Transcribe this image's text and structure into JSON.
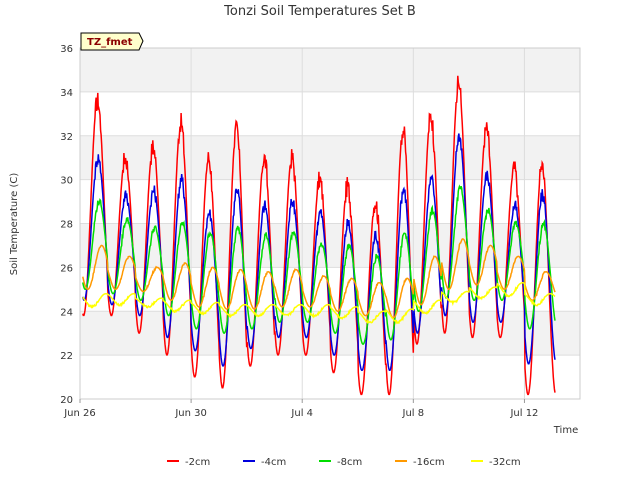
{
  "chart_data": {
    "type": "line",
    "title": "Tonzi Soil Temperatures Set B",
    "xlabel": "Time",
    "ylabel": "Soil Temperature (C)",
    "badge": "TZ_fmet",
    "ylim": [
      20,
      36
    ],
    "xlim": [
      0,
      18
    ],
    "x_unit": "days since Jun 26",
    "yticks": [
      20,
      22,
      24,
      26,
      28,
      30,
      32,
      34,
      36
    ],
    "xticks": [
      {
        "x": 0,
        "label": "Jun 26"
      },
      {
        "x": 4,
        "label": "Jun 30"
      },
      {
        "x": 8,
        "label": "Jul 4"
      },
      {
        "x": 12,
        "label": "Jul 8"
      },
      {
        "x": 16,
        "label": "Jul 12"
      }
    ],
    "grid": true,
    "legend_position": "bottom",
    "series": [
      {
        "name": "-2cm",
        "color": "#ff0000",
        "peaks": [
          33.6,
          31.0,
          31.5,
          32.6,
          31.0,
          32.3,
          31.0,
          31.0,
          30.0,
          29.7,
          29.0,
          32.3,
          32.9,
          34.4,
          32.3,
          30.5,
          30.6
        ],
        "mins": [
          23.8,
          23.8,
          23.0,
          22.0,
          21.0,
          20.5,
          21.5,
          22.0,
          22.0,
          21.2,
          20.2,
          20.2,
          22.5,
          23.0,
          22.8,
          22.8,
          20.2
        ]
      },
      {
        "name": "-4cm",
        "color": "#0000dd",
        "peaks": [
          31.0,
          29.3,
          29.5,
          30.0,
          28.5,
          29.6,
          28.8,
          29.0,
          28.5,
          28.0,
          27.5,
          29.6,
          30.0,
          32.0,
          30.2,
          28.8,
          29.3
        ],
        "mins": [
          24.5,
          24.3,
          23.8,
          22.8,
          22.2,
          21.5,
          22.3,
          22.8,
          22.8,
          22.0,
          21.3,
          21.3,
          23.0,
          23.8,
          23.5,
          23.5,
          21.6
        ]
      },
      {
        "name": "-8cm",
        "color": "#00dd00",
        "peaks": [
          29.0,
          28.2,
          27.8,
          28.0,
          27.6,
          27.8,
          27.5,
          27.6,
          27.1,
          27.0,
          26.5,
          27.6,
          28.6,
          29.6,
          28.6,
          28.0,
          28.0
        ],
        "mins": [
          25.0,
          24.8,
          24.5,
          23.8,
          23.2,
          23.0,
          23.2,
          23.5,
          23.5,
          23.0,
          22.5,
          22.7,
          24.0,
          24.6,
          24.5,
          24.5,
          23.2
        ]
      },
      {
        "name": "-16cm",
        "color": "#ff9900",
        "peaks": [
          27.0,
          26.5,
          26.0,
          26.2,
          26.0,
          25.9,
          25.8,
          25.9,
          25.6,
          25.5,
          25.3,
          25.5,
          26.5,
          27.3,
          27.0,
          26.5,
          25.8
        ],
        "mins": [
          25.0,
          25.0,
          24.9,
          24.5,
          24.2,
          24.1,
          24.1,
          24.2,
          24.2,
          24.0,
          23.8,
          23.7,
          24.3,
          25.0,
          25.2,
          25.0,
          24.5
        ]
      },
      {
        "name": "-32cm",
        "color": "#ffff00",
        "peaks": [
          24.8,
          24.8,
          24.6,
          24.5,
          24.4,
          24.3,
          24.3,
          24.3,
          24.3,
          24.2,
          24.0,
          24.1,
          24.5,
          24.9,
          25.1,
          25.3,
          24.8
        ],
        "mins": [
          24.2,
          24.3,
          24.2,
          24.0,
          23.9,
          23.8,
          23.8,
          23.8,
          23.8,
          23.7,
          23.5,
          23.5,
          23.9,
          24.4,
          24.6,
          24.7,
          24.3
        ]
      }
    ]
  }
}
